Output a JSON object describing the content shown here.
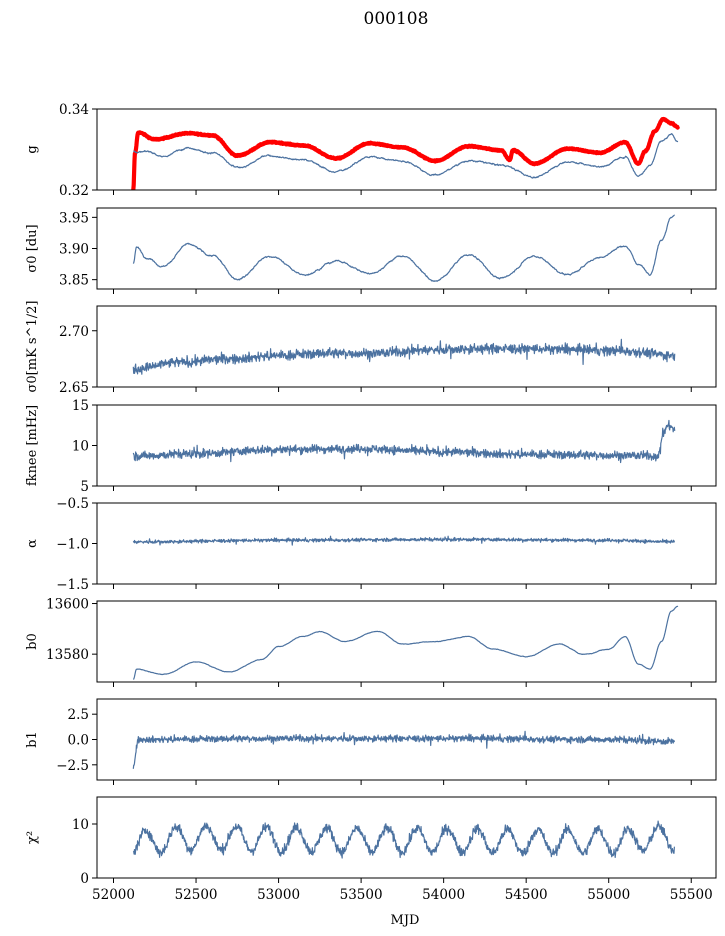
{
  "figure": {
    "title": "000108",
    "xlabel": "MJD"
  },
  "colors": {
    "series": "#4c72a0",
    "highlight": "#ff0000",
    "frame": "#000000"
  },
  "chart_data": [
    {
      "type": "line",
      "ylabel": "g",
      "xlim": [
        51900,
        55650
      ],
      "ylim": [
        0.32,
        0.34
      ],
      "yticks": [
        0.32,
        0.34
      ],
      "ytick_labels": [
        "0.32",
        "0.34"
      ],
      "grid": false,
      "series": [
        {
          "color": "#ff0000",
          "style": "thick-band",
          "x_range": [
            52120,
            55420
          ],
          "points": [
            [
              52120,
              0.32
            ],
            [
              52130,
              0.329
            ],
            [
              52150,
              0.3342
            ],
            [
              52250,
              0.3325
            ],
            [
              52450,
              0.334
            ],
            [
              52600,
              0.3335
            ],
            [
              52750,
              0.3285
            ],
            [
              52950,
              0.3318
            ],
            [
              53150,
              0.331
            ],
            [
              53350,
              0.3278
            ],
            [
              53550,
              0.3315
            ],
            [
              53750,
              0.3305
            ],
            [
              53950,
              0.3272
            ],
            [
              54150,
              0.3308
            ],
            [
              54350,
              0.3298
            ],
            [
              54400,
              0.3275
            ],
            [
              54420,
              0.3298
            ],
            [
              54550,
              0.3265
            ],
            [
              54750,
              0.3302
            ],
            [
              54950,
              0.3292
            ],
            [
              55100,
              0.3318
            ],
            [
              55180,
              0.3265
            ],
            [
              55220,
              0.3295
            ],
            [
              55280,
              0.3345
            ],
            [
              55330,
              0.3375
            ],
            [
              55380,
              0.3365
            ],
            [
              55420,
              0.3355
            ]
          ]
        },
        {
          "color": "#4c72a0",
          "style": "line",
          "x_range": [
            52120,
            55420
          ],
          "points": [
            [
              52120,
              0.3295
            ],
            [
              52200,
              0.3295
            ],
            [
              52300,
              0.3282
            ],
            [
              52450,
              0.3305
            ],
            [
              52600,
              0.3292
            ],
            [
              52750,
              0.3255
            ],
            [
              52950,
              0.3285
            ],
            [
              53150,
              0.3275
            ],
            [
              53350,
              0.3245
            ],
            [
              53550,
              0.3282
            ],
            [
              53750,
              0.3272
            ],
            [
              53950,
              0.3238
            ],
            [
              54150,
              0.3272
            ],
            [
              54350,
              0.3262
            ],
            [
              54550,
              0.3232
            ],
            [
              54750,
              0.327
            ],
            [
              54950,
              0.3258
            ],
            [
              55100,
              0.3282
            ],
            [
              55180,
              0.3235
            ],
            [
              55250,
              0.3262
            ],
            [
              55320,
              0.3322
            ],
            [
              55380,
              0.3335
            ],
            [
              55420,
              0.332
            ]
          ]
        }
      ]
    },
    {
      "type": "line",
      "ylabel": "σ0 [du]",
      "xlim": [
        51900,
        55650
      ],
      "ylim": [
        3.835,
        3.965
      ],
      "yticks": [
        3.85,
        3.9,
        3.95
      ],
      "ytick_labels": [
        "3.85",
        "3.90",
        "3.95"
      ],
      "grid": false,
      "series": [
        {
          "color": "#4c72a0",
          "style": "line",
          "x_range": [
            52120,
            55400
          ],
          "points": [
            [
              52120,
              3.876
            ],
            [
              52140,
              3.902
            ],
            [
              52200,
              3.885
            ],
            [
              52300,
              3.872
            ],
            [
              52450,
              3.906
            ],
            [
              52600,
              3.888
            ],
            [
              52750,
              3.852
            ],
            [
              52950,
              3.888
            ],
            [
              53150,
              3.858
            ],
            [
              53350,
              3.88
            ],
            [
              53550,
              3.86
            ],
            [
              53750,
              3.888
            ],
            [
              53950,
              3.848
            ],
            [
              54150,
              3.89
            ],
            [
              54350,
              3.852
            ],
            [
              54550,
              3.888
            ],
            [
              54750,
              3.858
            ],
            [
              54950,
              3.886
            ],
            [
              55100,
              3.905
            ],
            [
              55180,
              3.875
            ],
            [
              55250,
              3.86
            ],
            [
              55320,
              3.915
            ],
            [
              55380,
              3.95
            ],
            [
              55400,
              3.952
            ]
          ]
        }
      ]
    },
    {
      "type": "line",
      "ylabel": "σ0[mK s^1/2]",
      "xlim": [
        51900,
        55650
      ],
      "ylim": [
        2.65,
        2.722
      ],
      "yticks": [
        2.65,
        2.7
      ],
      "ytick_labels": [
        "2.65",
        "2.70"
      ],
      "grid": false,
      "series": [
        {
          "color": "#4c72a0",
          "style": "noisy-line",
          "x_range": [
            52120,
            55400
          ],
          "points": [
            [
              52120,
              2.666
            ],
            [
              52400,
              2.672
            ],
            [
              52700,
              2.675
            ],
            [
              53000,
              2.678
            ],
            [
              53300,
              2.68
            ],
            [
              53600,
              2.68
            ],
            [
              53900,
              2.683
            ],
            [
              54200,
              2.684
            ],
            [
              54500,
              2.684
            ],
            [
              54800,
              2.683
            ],
            [
              55100,
              2.682
            ],
            [
              55400,
              2.678
            ]
          ]
        }
      ]
    },
    {
      "type": "line",
      "ylabel": "fknee [mHz]",
      "xlim": [
        51900,
        55650
      ],
      "ylim": [
        5,
        15
      ],
      "yticks": [
        5,
        10,
        15
      ],
      "ytick_labels": [
        "5",
        "10",
        "15"
      ],
      "grid": false,
      "series": [
        {
          "color": "#4c72a0",
          "style": "noisy-line",
          "x_range": [
            52120,
            55400
          ],
          "points": [
            [
              52120,
              8.7
            ],
            [
              52500,
              9.0
            ],
            [
              53000,
              9.5
            ],
            [
              53500,
              9.6
            ],
            [
              54000,
              9.2
            ],
            [
              54500,
              8.9
            ],
            [
              55000,
              8.8
            ],
            [
              55300,
              8.7
            ],
            [
              55330,
              11.5
            ],
            [
              55360,
              12.5
            ],
            [
              55400,
              12.0
            ]
          ]
        }
      ]
    },
    {
      "type": "line",
      "ylabel": "α",
      "xlim": [
        51900,
        55650
      ],
      "ylim": [
        -1.5,
        -0.5
      ],
      "yticks": [
        -1.5,
        -1.0,
        -0.5
      ],
      "ytick_labels": [
        "−1.5",
        "−1.0",
        "−0.5"
      ],
      "grid": false,
      "series": [
        {
          "color": "#4c72a0",
          "style": "noisy-line",
          "x_range": [
            52120,
            55400
          ],
          "points": [
            [
              52120,
              -0.98
            ],
            [
              53000,
              -0.96
            ],
            [
              54000,
              -0.95
            ],
            [
              55000,
              -0.96
            ],
            [
              55400,
              -0.98
            ]
          ]
        }
      ]
    },
    {
      "type": "line",
      "ylabel": "b0",
      "xlim": [
        51900,
        55650
      ],
      "ylim": [
        13569,
        13601
      ],
      "yticks": [
        13580,
        13600
      ],
      "ytick_labels": [
        "13580",
        "13600"
      ],
      "grid": false,
      "series": [
        {
          "color": "#4c72a0",
          "style": "line",
          "x_range": [
            52120,
            55420
          ],
          "points": [
            [
              52120,
              13570
            ],
            [
              52140,
              13574
            ],
            [
              52300,
              13572
            ],
            [
              52500,
              13577
            ],
            [
              52700,
              13573
            ],
            [
              52900,
              13578
            ],
            [
              53000,
              13583
            ],
            [
              53150,
              13587
            ],
            [
              53250,
              13589
            ],
            [
              53400,
              13585
            ],
            [
              53600,
              13589
            ],
            [
              53750,
              13584
            ],
            [
              53950,
              13585
            ],
            [
              54150,
              13587
            ],
            [
              54300,
              13582
            ],
            [
              54500,
              13579
            ],
            [
              54700,
              13584
            ],
            [
              54850,
              13580
            ],
            [
              55000,
              13582
            ],
            [
              55100,
              13587
            ],
            [
              55180,
              13576
            ],
            [
              55250,
              13574
            ],
            [
              55320,
              13585
            ],
            [
              55380,
              13597
            ],
            [
              55420,
              13599
            ]
          ]
        }
      ]
    },
    {
      "type": "line",
      "ylabel": "b1",
      "xlim": [
        51900,
        55650
      ],
      "ylim": [
        -4,
        4
      ],
      "yticks": [
        -2.5,
        0.0,
        2.5
      ],
      "ytick_labels": [
        "−2.5",
        "0.0",
        "2.5"
      ],
      "grid": false,
      "series": [
        {
          "color": "#4c72a0",
          "style": "noisy-line",
          "x_range": [
            52120,
            55400
          ],
          "points": [
            [
              52120,
              -2.7
            ],
            [
              52150,
              0.0
            ],
            [
              53000,
              0.1
            ],
            [
              54000,
              0.1
            ],
            [
              55000,
              0.0
            ],
            [
              55400,
              -0.2
            ]
          ]
        }
      ]
    },
    {
      "type": "line",
      "ylabel": "χ²",
      "xlim": [
        51900,
        55650
      ],
      "ylim": [
        0,
        15
      ],
      "yticks": [
        0,
        10
      ],
      "ytick_labels": [
        "0",
        "10"
      ],
      "xticks": [
        52000,
        52500,
        53000,
        53500,
        54000,
        54500,
        55000,
        55500
      ],
      "xtick_labels": [
        "52000",
        "52500",
        "53000",
        "53500",
        "54000",
        "54500",
        "55000",
        "55500"
      ],
      "grid": false,
      "series": [
        {
          "color": "#4c72a0",
          "style": "noisy-periodic",
          "x_range": [
            52120,
            55400
          ],
          "points": [
            [
              52120,
              6.5
            ],
            [
              52500,
              7.5
            ],
            [
              53000,
              7.2
            ],
            [
              53500,
              7.0
            ],
            [
              54000,
              7.0
            ],
            [
              54500,
              6.8
            ],
            [
              55000,
              6.8
            ],
            [
              55400,
              7.5
            ]
          ]
        }
      ]
    }
  ]
}
